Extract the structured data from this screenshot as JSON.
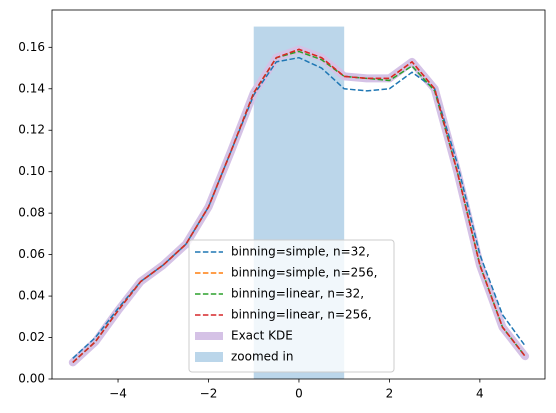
{
  "chart_data": {
    "type": "line",
    "x": [
      -5,
      -4.5,
      -4,
      -3.5,
      -3,
      -2.5,
      -2,
      -1.5,
      -1,
      -0.5,
      0,
      0.5,
      1,
      1.5,
      2,
      2.5,
      3,
      3.5,
      4,
      4.5,
      5
    ],
    "series": [
      {
        "name": "binning=simple, n=32,",
        "color": "#1f77b4",
        "linestyle": "dashed",
        "linewidth": 1.5,
        "values": [
          0.01,
          0.02,
          0.034,
          0.047,
          0.055,
          0.065,
          0.083,
          0.11,
          0.137,
          0.153,
          0.155,
          0.15,
          0.14,
          0.139,
          0.14,
          0.148,
          0.14,
          0.104,
          0.06,
          0.031,
          0.016
        ]
      },
      {
        "name": "binning=simple, n=256,",
        "color": "#ff7f0e",
        "linestyle": "dashed",
        "linewidth": 1.5,
        "values": [
          0.008,
          0.018,
          0.033,
          0.047,
          0.055,
          0.065,
          0.083,
          0.11,
          0.138,
          0.155,
          0.159,
          0.155,
          0.146,
          0.145,
          0.145,
          0.153,
          0.14,
          0.1,
          0.055,
          0.025,
          0.011
        ]
      },
      {
        "name": "binning=linear, n=32,",
        "color": "#2ca02c",
        "linestyle": "dashed",
        "linewidth": 1.5,
        "values": [
          0.008,
          0.018,
          0.033,
          0.047,
          0.055,
          0.065,
          0.083,
          0.11,
          0.138,
          0.155,
          0.158,
          0.154,
          0.146,
          0.145,
          0.144,
          0.151,
          0.139,
          0.1,
          0.055,
          0.025,
          0.011
        ]
      },
      {
        "name": "binning=linear, n=256,",
        "color": "#d62728",
        "linestyle": "dashed",
        "linewidth": 1.5,
        "values": [
          0.008,
          0.018,
          0.033,
          0.047,
          0.055,
          0.065,
          0.083,
          0.11,
          0.138,
          0.155,
          0.159,
          0.155,
          0.146,
          0.145,
          0.145,
          0.153,
          0.14,
          0.1,
          0.055,
          0.025,
          0.011
        ]
      },
      {
        "name": "Exact KDE",
        "color": "#d5c2e6",
        "linestyle": "solid",
        "linewidth": 8,
        "values": [
          0.008,
          0.018,
          0.033,
          0.047,
          0.055,
          0.065,
          0.083,
          0.11,
          0.138,
          0.155,
          0.159,
          0.155,
          0.146,
          0.145,
          0.145,
          0.153,
          0.14,
          0.1,
          0.055,
          0.025,
          0.011
        ]
      }
    ],
    "span": {
      "name": "zoomed in",
      "color": "#bbd6ea",
      "x": [
        -1,
        1
      ],
      "top": 0.17
    },
    "xlim": [
      -5.46,
      5.44
    ],
    "ylim": [
      0,
      0.178
    ],
    "xticks": [
      {
        "value": -4,
        "label": "−4"
      },
      {
        "value": -2,
        "label": "−2"
      },
      0,
      2,
      4
    ],
    "yticks": [
      {
        "value": 0,
        "label": "0.00"
      },
      {
        "value": 0.02,
        "label": "0.02"
      },
      {
        "value": 0.04,
        "label": "0.04"
      },
      {
        "value": 0.06,
        "label": "0.06"
      },
      {
        "value": 0.08,
        "label": "0.08"
      },
      {
        "value": 0.1,
        "label": "0.10"
      },
      {
        "value": 0.12,
        "label": "0.12"
      },
      {
        "value": 0.14,
        "label": "0.14"
      },
      {
        "value": 0.16,
        "label": "0.16"
      }
    ],
    "legend": "lower center"
  }
}
